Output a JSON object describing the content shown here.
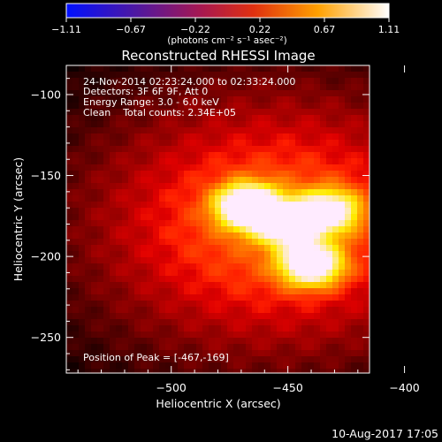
{
  "colorbar": {
    "ticks": [
      "-1.11",
      "-0.67",
      "-0.22",
      "0.22",
      "0.67",
      "1.11"
    ],
    "units_label": "(photons cm⁻² s⁻¹ asec⁻²)"
  },
  "chart_data": {
    "type": "heatmap",
    "title": "Reconstructed RHESSI Image",
    "xlabel": "Heliocentric X (arcsec)",
    "ylabel": "Heliocentric Y (arcsec)",
    "xlim": [
      -545,
      -415
    ],
    "ylim": [
      -272,
      -82
    ],
    "xticks": [
      -500,
      -450,
      -400
    ],
    "yticks": [
      -100,
      -150,
      -200,
      -250
    ],
    "xtick_labels": [
      "−500",
      "−450",
      "−400"
    ],
    "ytick_labels": [
      "−100",
      "−150",
      "−200",
      "−250"
    ],
    "colormap": "hot",
    "value_range": [
      -1.11,
      1.11
    ],
    "sources": [
      {
        "x": -467,
        "y": -169,
        "peak": 1.0
      },
      {
        "x": -450,
        "y": -180,
        "peak": 0.75
      },
      {
        "x": -440,
        "y": -205,
        "peak": 0.85
      },
      {
        "x": -432,
        "y": -172,
        "peak": 0.7
      }
    ],
    "annotations": [
      "24-Nov-2014 02:23:24.000 to 02:33:24.000",
      "Detectors: 3F 6F 9F, Att 0",
      "Energy Range: 3.0 - 6.0 keV",
      "Clean    Total counts: 2.34E+05"
    ],
    "peak_label": "Position of Peak = [-467,-169]"
  },
  "footer": {
    "timestamp": "10-Aug-2017 17:05"
  }
}
